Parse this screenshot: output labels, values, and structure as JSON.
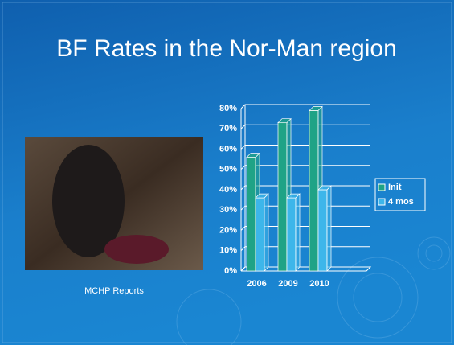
{
  "header": {
    "title": "BF Rates in the Nor-Man region"
  },
  "caption": "MCHP Reports",
  "chart_data": {
    "type": "bar",
    "categories": [
      "2006",
      "2009",
      "2010",
      null
    ],
    "series": [
      {
        "name": "Init",
        "color": "#1fa386",
        "values": [
          56,
          73,
          79,
          null
        ]
      },
      {
        "name": "4 mos",
        "color": "#3db6ea",
        "values": [
          36,
          36,
          40,
          null
        ]
      }
    ],
    "ylim": [
      0,
      80
    ],
    "yticks": [
      {
        "value": 0,
        "label": "0%"
      },
      {
        "value": 10,
        "label": "10%"
      },
      {
        "value": 20,
        "label": "20%"
      },
      {
        "value": 30,
        "label": "30%"
      },
      {
        "value": 40,
        "label": "40%"
      },
      {
        "value": 50,
        "label": "50%"
      },
      {
        "value": 60,
        "label": "60%"
      },
      {
        "value": 70,
        "label": "70%"
      },
      {
        "value": 80,
        "label": "80%"
      }
    ],
    "grid": true,
    "legend": "right"
  }
}
